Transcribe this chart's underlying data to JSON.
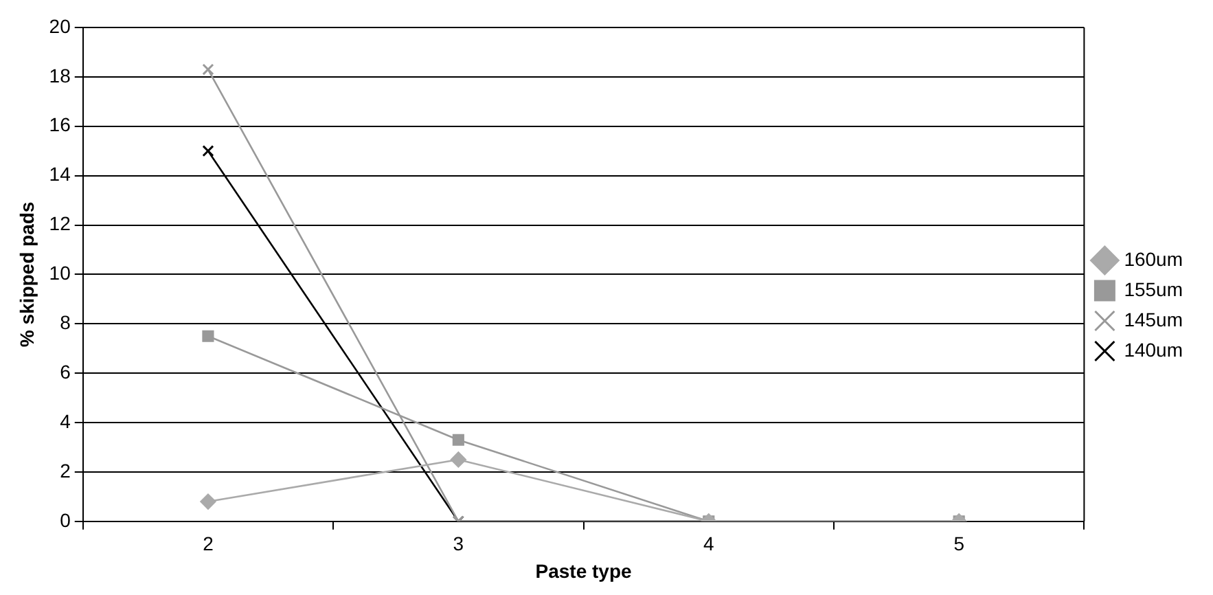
{
  "chart_data": {
    "type": "line",
    "xlabel": "Paste type",
    "ylabel": "% skipped pads",
    "categories": [
      "2",
      "3",
      "4",
      "5"
    ],
    "series": [
      {
        "name": "160um",
        "color": "#aaaaaa",
        "marker": "diamond",
        "values": [
          0.8,
          2.5,
          0,
          0
        ]
      },
      {
        "name": "155um",
        "color": "#999999",
        "marker": "square",
        "values": [
          7.5,
          3.3,
          0,
          0
        ]
      },
      {
        "name": "145um",
        "color": "#999999",
        "marker": "cross",
        "values": [
          18.3,
          0,
          0,
          0
        ]
      },
      {
        "name": "140um",
        "color": "#000000",
        "marker": "cross",
        "values": [
          15,
          0,
          0,
          0
        ]
      }
    ],
    "ylim": [
      0,
      20
    ],
    "yticks": [
      0,
      2,
      4,
      6,
      8,
      10,
      12,
      14,
      16,
      18,
      20
    ],
    "grid": "y",
    "legend": "right",
    "line_style": "solid"
  }
}
